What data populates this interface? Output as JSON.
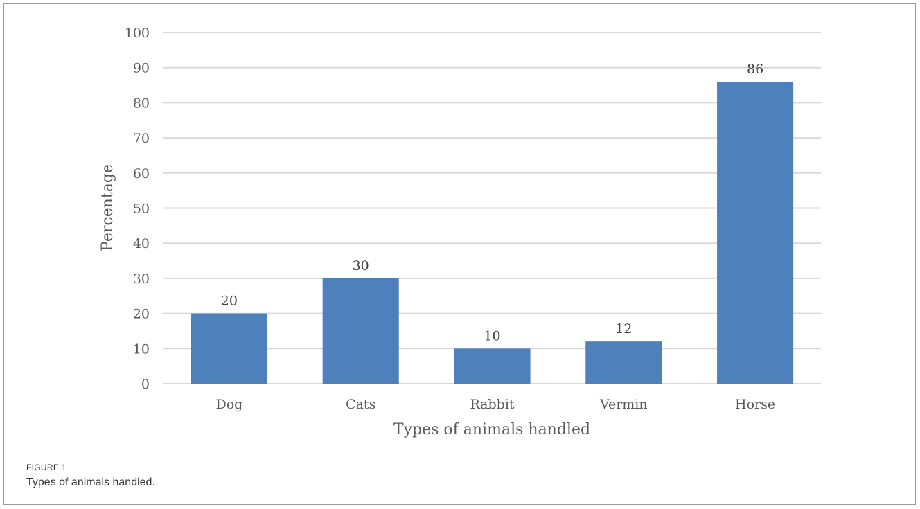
{
  "figure": {
    "label": "FIGURE 1",
    "caption": "Types of animals handled."
  },
  "chart_data": {
    "type": "bar",
    "categories": [
      "Dog",
      "Cats",
      "Rabbit",
      "Vermin",
      "Horse"
    ],
    "values": [
      20,
      30,
      10,
      12,
      86
    ],
    "data_labels": [
      "20",
      "30",
      "10",
      "12",
      "86"
    ],
    "yticks": [
      "0",
      "10",
      "20",
      "30",
      "40",
      "50",
      "60",
      "70",
      "80",
      "90",
      "100"
    ],
    "xlabel": "Types of animals handled",
    "ylabel": "Percentage",
    "ylim": [
      0,
      100
    ],
    "grid": true,
    "legend": "none",
    "bar_color": "#4e80bc",
    "grid_color": "#d9d9d9"
  }
}
